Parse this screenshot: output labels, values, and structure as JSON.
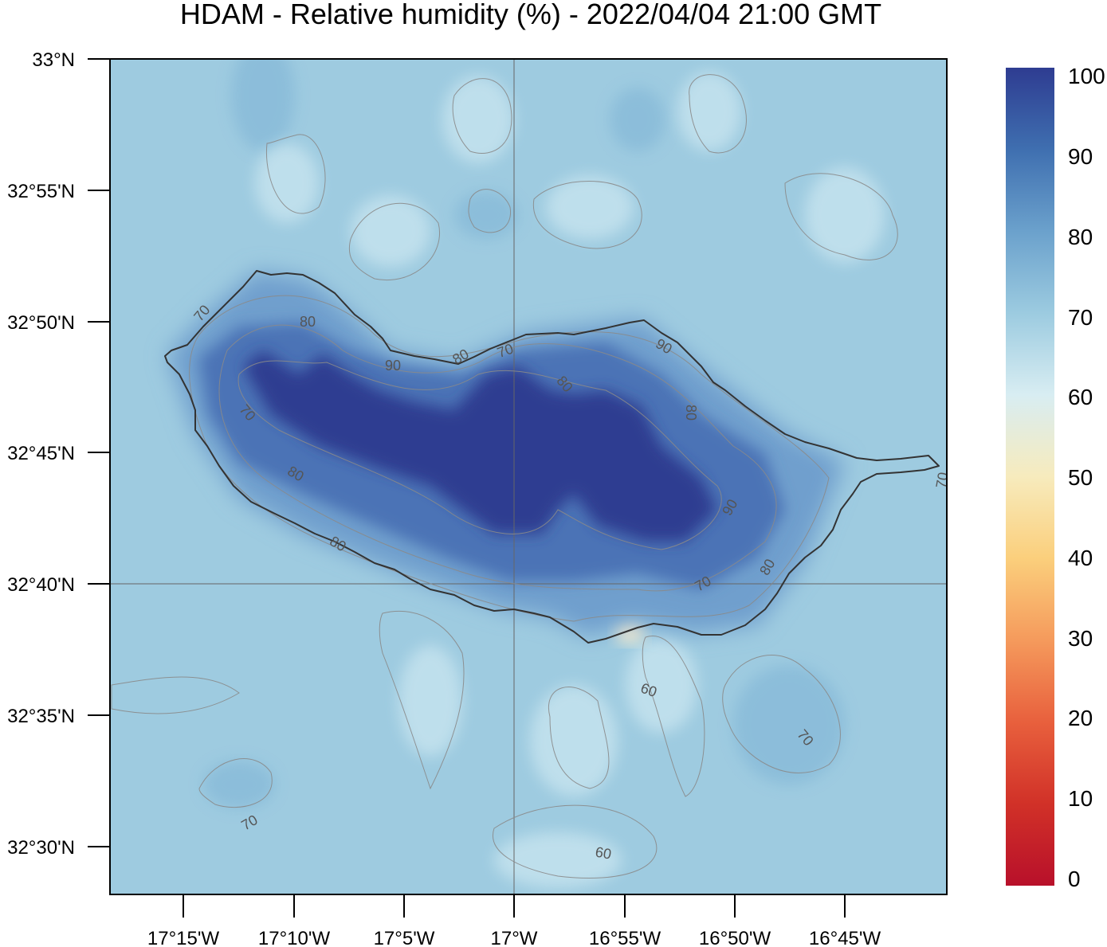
{
  "title": "HDAM - Relative humidity (%)  -  2022/04/04  21:00 GMT",
  "map": {
    "latitude_labels": [
      "33°N",
      "32°55'N",
      "32°50'N",
      "32°45'N",
      "32°40'N",
      "32°35'N",
      "32°30'N"
    ],
    "longitude_labels": [
      "17°15'W",
      "17°10'W",
      "17°5'W",
      "17°W",
      "16°55'W",
      "16°50'W",
      "16°45'W"
    ],
    "contour_labels": [
      "70",
      "80",
      "90",
      "80",
      "70",
      "80",
      "90",
      "80",
      "70",
      "80",
      "90",
      "80",
      "70",
      "80",
      "70",
      "60",
      "70",
      "70",
      "60"
    ],
    "background_color": "#9ecbe0",
    "coastline_color": "#333333",
    "contour_color": "#888888"
  },
  "colorbar": {
    "labels": [
      "100",
      "90",
      "80",
      "70",
      "60",
      "50",
      "40",
      "30",
      "20",
      "10",
      "0"
    ],
    "colors": [
      "#2e3c91",
      "#3f6fb0",
      "#6ba1cc",
      "#9ccbe0",
      "#d8edf2",
      "#f7ebbd",
      "#fbcf7c",
      "#f59a5c",
      "#e8603d",
      "#d13128",
      "#b8102a"
    ]
  }
}
